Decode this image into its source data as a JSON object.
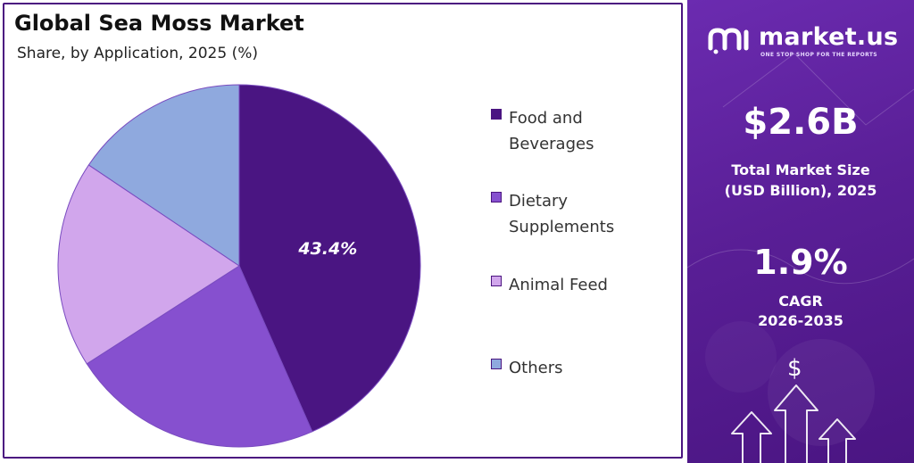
{
  "title": "Global Sea Moss Market",
  "subtitle": "Share, by Application, 2025 (%)",
  "colors": {
    "accent": "#4b1580",
    "panel": "#5a1f97",
    "food": "#4a1582",
    "dietary": "#8650cf",
    "animal": "#d1a6ec",
    "others": "#8fa9de"
  },
  "chart_data": {
    "type": "pie",
    "categories": [
      "Food and Beverages",
      "Dietary Supplements",
      "Animal Feed",
      "Others"
    ],
    "values": [
      43.4,
      22.5,
      18.5,
      15.6
    ],
    "data_labels": [
      "43.4%",
      "",
      "",
      ""
    ],
    "legend_position": "right"
  },
  "legend": {
    "items": [
      {
        "label": "Food and Beverages",
        "color": "#4a1582"
      },
      {
        "label": "Dietary Supplements",
        "color": "#8650cf"
      },
      {
        "label": "Animal Feed",
        "color": "#d1a6ec"
      },
      {
        "label": "Others",
        "color": "#8fa9de"
      }
    ]
  },
  "brand": {
    "name": "market.us",
    "tagline": "ONE STOP SHOP FOR THE REPORTS",
    "logo_icon": "market-us-logo-icon"
  },
  "stats": {
    "market_size_value": "$2.6B",
    "market_size_label_line1": "Total Market Size",
    "market_size_label_line2": "(USD Billion), 2025",
    "cagr_value": "1.9%",
    "cagr_label_line1": "CAGR",
    "cagr_label_line2": "2026-2035"
  },
  "decor": {
    "dollar_icon": "dollar-sign-icon",
    "dollar_symbol": "$",
    "arrows_icon": "up-arrows-icon"
  }
}
